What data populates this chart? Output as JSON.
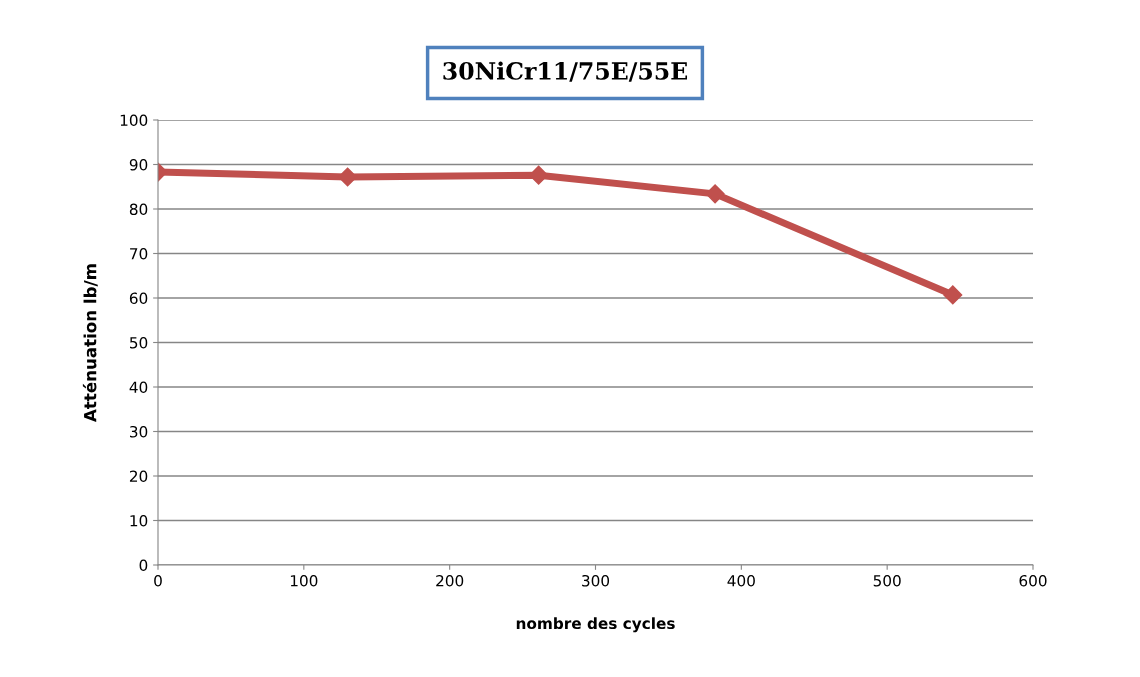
{
  "chart_data": {
    "type": "line",
    "title": "30NiCr11/75E/55E",
    "xlabel": "nombre des cycles",
    "ylabel": "Atténuation lb/m",
    "x": [
      0,
      130,
      261,
      382,
      545
    ],
    "series": [
      {
        "color": "#c0504d",
        "values": [
          88.3,
          87.2,
          87.6,
          83.4,
          60.7
        ]
      }
    ],
    "xlim": [
      0,
      600
    ],
    "xticks": [
      0,
      100,
      200,
      300,
      400,
      500,
      600
    ],
    "ylim": [
      0,
      100
    ],
    "yticks": [
      0,
      10,
      20,
      30,
      40,
      50,
      60,
      70,
      80,
      90,
      100
    ],
    "grid": "y",
    "marker": "diamond",
    "line_style": "solid",
    "legend": false
  }
}
